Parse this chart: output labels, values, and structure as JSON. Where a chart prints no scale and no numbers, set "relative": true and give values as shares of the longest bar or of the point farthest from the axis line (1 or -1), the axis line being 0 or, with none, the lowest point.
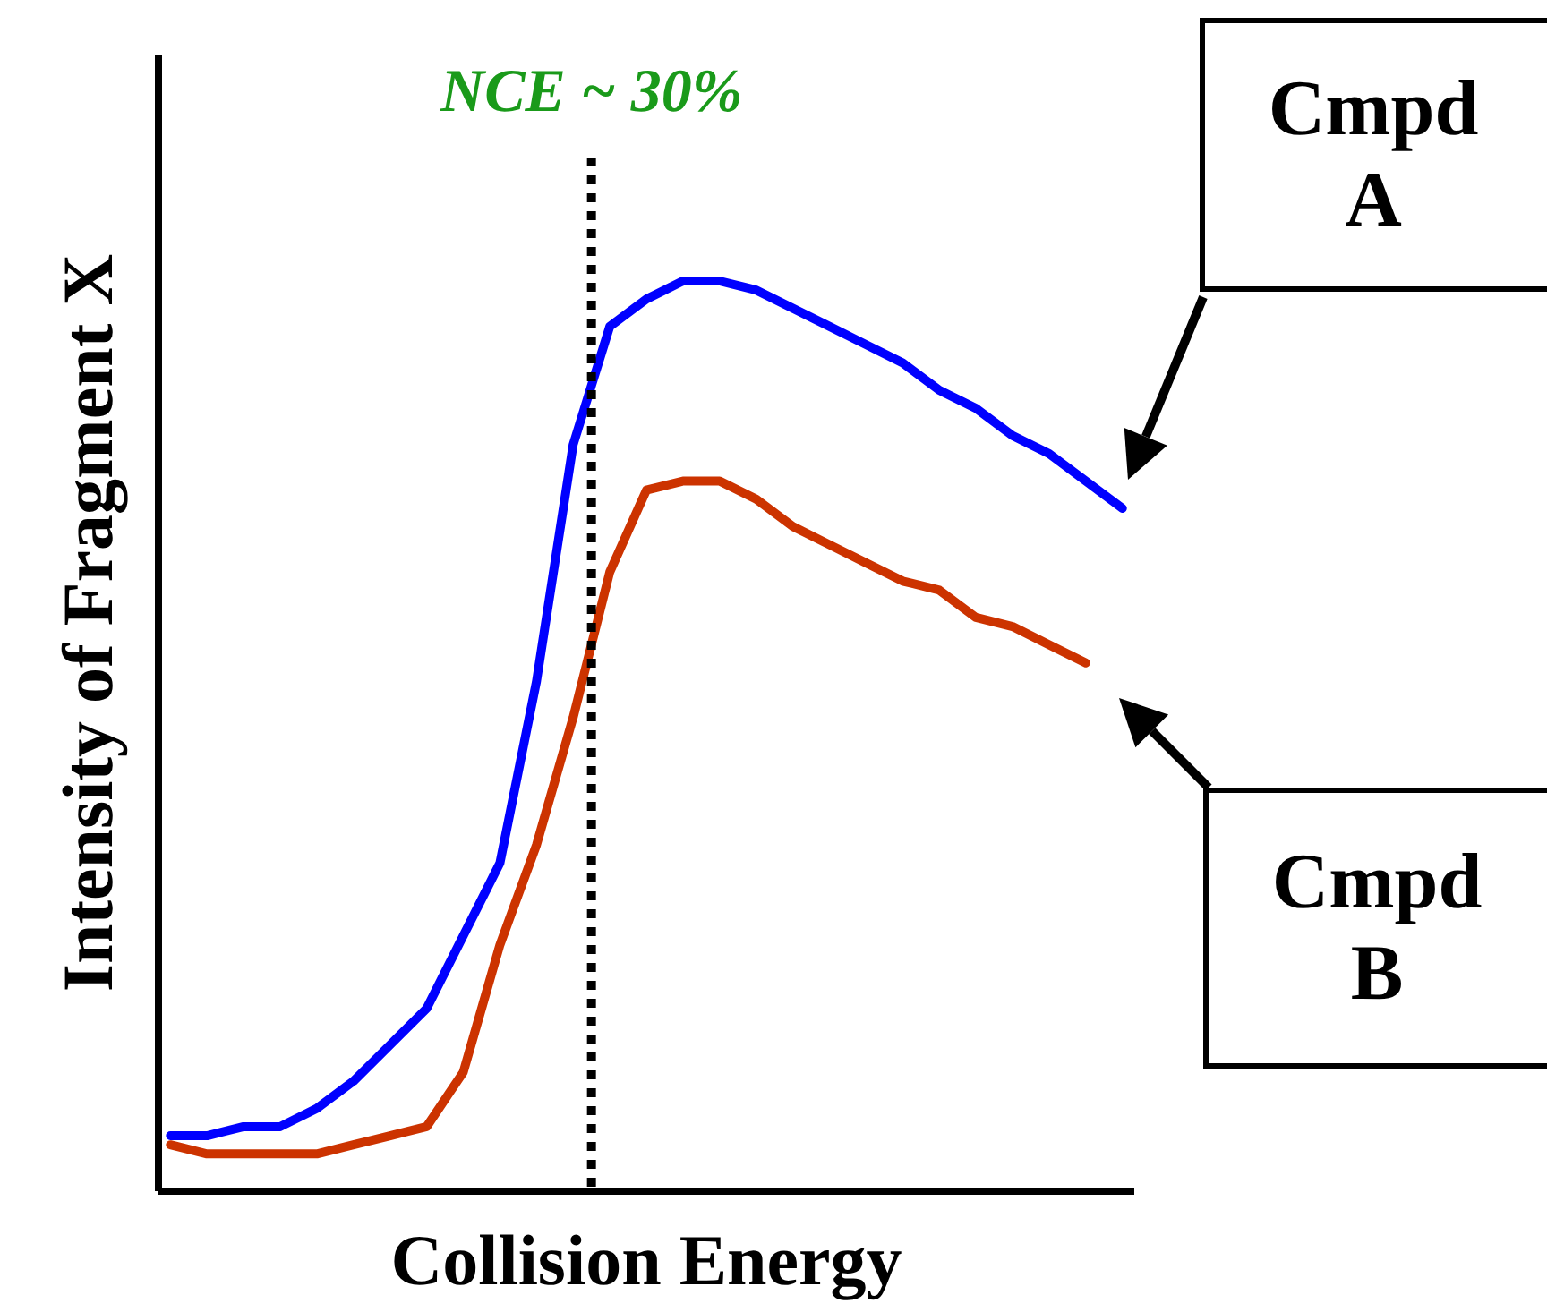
{
  "chart_data": {
    "type": "line",
    "relative": true,
    "xlabel": "Collision Energy",
    "ylabel": "Intensity of Fragment X",
    "categories": [
      null,
      null,
      null,
      null,
      null,
      null,
      null,
      null,
      null,
      null,
      null,
      null,
      null,
      null,
      null,
      null,
      null,
      null,
      null,
      null,
      null,
      null,
      null,
      null,
      null,
      null,
      null
    ],
    "series": [
      {
        "name": "Cmpd A",
        "color": "#0000ff",
        "values": [
          0.06,
          0.06,
          0.07,
          0.07,
          0.09,
          0.12,
          0.16,
          0.2,
          0.28,
          0.36,
          0.56,
          0.82,
          0.95,
          0.98,
          1,
          1,
          0.99,
          0.97,
          0.95,
          0.93,
          0.91,
          0.88,
          0.86,
          0.83,
          0.81,
          0.78,
          0.75
        ]
      },
      {
        "name": "Cmpd B",
        "color": "#cc3300",
        "values": [
          0.05,
          0.04,
          0.04,
          0.04,
          0.04,
          0.05,
          0.06,
          0.07,
          0.13,
          0.27,
          0.38,
          0.52,
          0.68,
          0.77,
          0.78,
          0.78,
          0.76,
          0.73,
          0.71,
          0.69,
          0.67,
          0.66,
          0.63,
          0.62,
          0.6,
          0.58,
          null
        ]
      }
    ],
    "annotations": [
      "NCE ~ 30%"
    ],
    "line_style": "solid",
    "marker": "none",
    "grid": false
  }
}
